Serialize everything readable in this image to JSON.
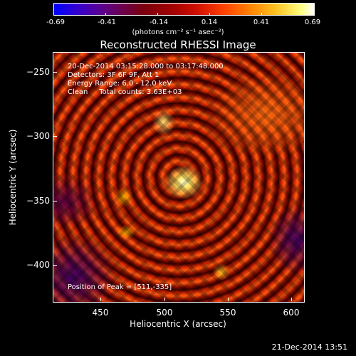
{
  "colorbar": {
    "ticks": [
      "-0.69",
      "-0.41",
      "-0.14",
      "0.14",
      "0.41",
      "0.69"
    ],
    "units": "(photons cm⁻² s⁻¹ asec⁻²)"
  },
  "plot": {
    "title": "Reconstructed RHESSI Image",
    "info_lines": [
      "20-Dec-2014 03:15:28.000 to 03:17:48.000",
      "Detectors: 3F 6F 9F, Att 1",
      "Energy Range: 6.0 - 12.0 keV",
      "Clean     Total counts: 3.63E+03"
    ],
    "peak_label": "Position of Peak = [511,-335]",
    "x_axis": {
      "title": "Heliocentric X (arcsec)",
      "ticks": [
        "450",
        "500",
        "550",
        "600"
      ]
    },
    "y_axis": {
      "title": "Heliocentric Y (arcsec)",
      "ticks": [
        "−250",
        "−300",
        "−350",
        "−400"
      ]
    }
  },
  "footer": {
    "timestamp": "21-Dec-2014 13:51"
  }
}
